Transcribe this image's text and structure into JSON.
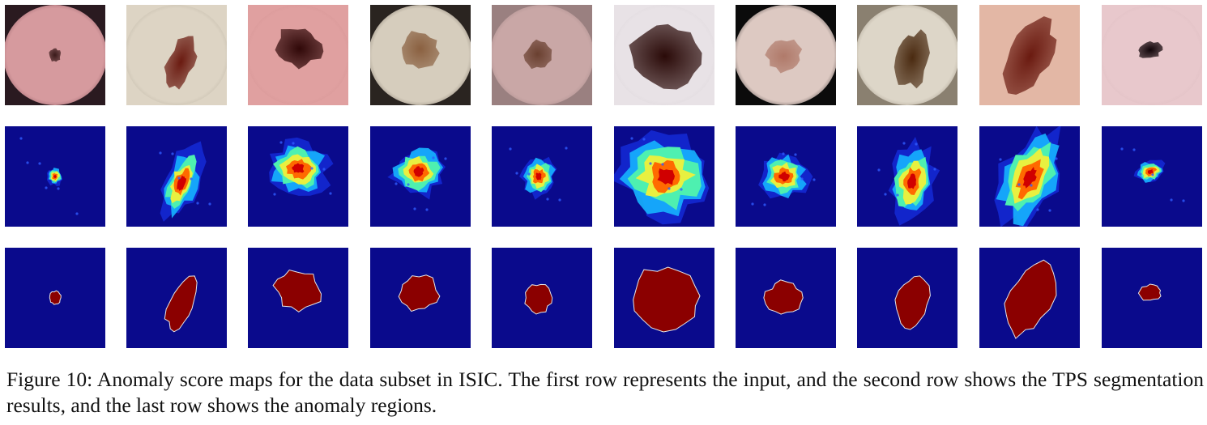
{
  "figure": {
    "caption": "Figure 10: Anomaly score maps for the data subset in ISIC. The first row represents the input, and the second row shows the TPS segmentation results, and the last row shows the anomaly regions.",
    "rows": [
      {
        "name": "input-row"
      },
      {
        "name": "score-map-row"
      },
      {
        "name": "anomaly-region-row"
      }
    ],
    "colors": {
      "map_background": "#0a0a8c",
      "region_fill": "#8b0000",
      "region_edge": "#e6e6e6"
    },
    "samples": [
      {
        "skin": "#d69a9e",
        "edge": "#7a4a55",
        "lesion": "#3a1a1a",
        "bg": "#2a1a20"
      },
      {
        "skin": "#ddd4c4",
        "edge": "#b0a898",
        "lesion": "#6a1a10",
        "bg": "#ddd4c4"
      },
      {
        "skin": "#e0a0a0",
        "edge": "#d09090",
        "lesion": "#300808",
        "bg": "#e0a0a0"
      },
      {
        "skin": "#d6cdbd",
        "edge": "#5a5045",
        "lesion": "#8a6040",
        "bg": "#2a2420"
      },
      {
        "skin": "#c9a7a6",
        "edge": "#9a8080",
        "lesion": "#6a4030",
        "bg": "#9a8080"
      },
      {
        "skin": "#e8e2e6",
        "edge": "#d8d2d6",
        "lesion": "#2a0a08",
        "bg": "#e8e2e6"
      },
      {
        "skin": "#ddc9c2",
        "edge": "#0b0b0b",
        "lesion": "#b07a6a",
        "bg": "#0b0b0b"
      },
      {
        "skin": "#ddd6c8",
        "edge": "#8a8070",
        "lesion": "#4a2a10",
        "bg": "#8a8070"
      },
      {
        "skin": "#e3b7a5",
        "edge": "#e3b7a5",
        "lesion": "#6a1a10",
        "bg": "#e3b7a5"
      },
      {
        "skin": "#e8c8cc",
        "edge": "#d8b8bc",
        "lesion": "#100408",
        "bg": "#e8c8cc"
      }
    ]
  }
}
